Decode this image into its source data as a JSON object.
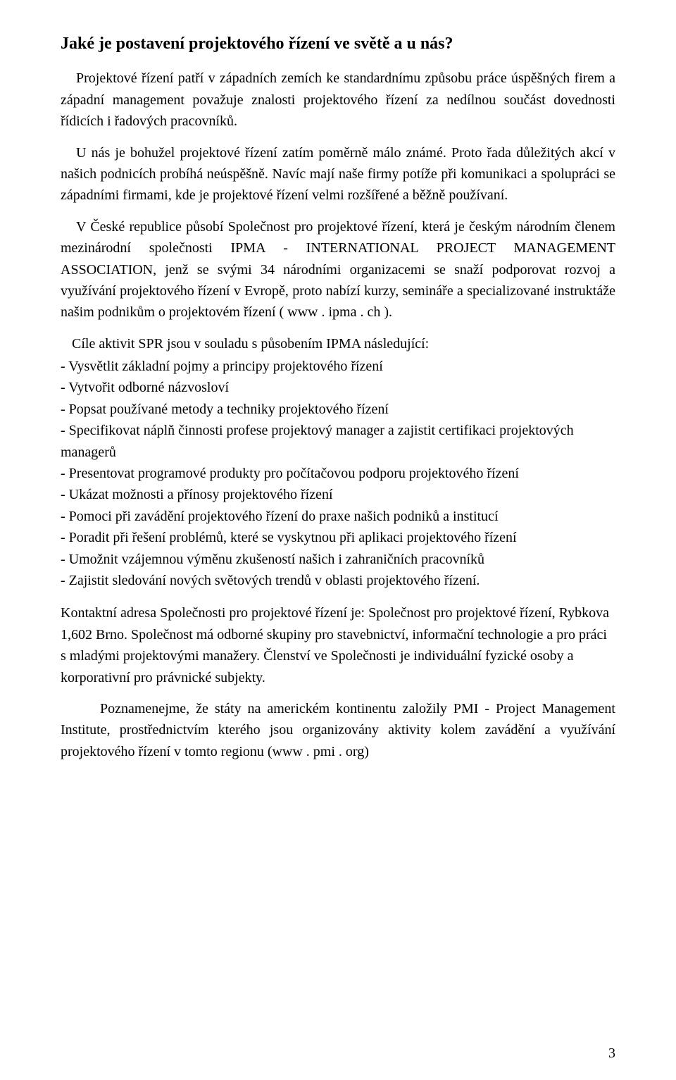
{
  "heading": "Jaké je postavení projektového řízení ve světě a u nás?",
  "para1": "Projektové řízení patří v západních zemích ke standardnímu způsobu práce úspěšných firem a západní management považuje znalosti projektového řízení za nedílnou součást dovednosti řídicích i řadových pracovníků.",
  "para2": "U nás je bohužel projektové řízení zatím poměrně málo známé. Proto řada důležitých akcí v našich podnicích probíhá neúspěšně. Navíc mají naše firmy potíže při komunikaci a spolupráci se západními firmami, kde je projektové řízení velmi rozšířené a běžně používaní.",
  "para3": "V České republice působí Společnost pro projektové řízení, která je českým národním členem mezinárodní společnosti IPMA - INTERNATIONAL PROJECT MANAGEMENT ASSOCIATION, jenž se svými 34 národními organizacemi se snaží podporovat rozvoj a využívání projektového řízení v Evropě, proto nabízí kurzy, semináře a specializované instruktáže našim podnikům o projektovém řízení ( www . ipma . ch ).",
  "goals_intro": "Cíle  aktivit SPR jsou v souladu s působením IPMA následující:",
  "goals": [
    " - Vysvětlit základní pojmy a principy projektového řízení",
    "- Vytvořit odborné názvosloví",
    " - Popsat používané metody a techniky projektového řízení",
    "- Specifikovat náplň činnosti profese projektový manager a zajistit certifikaci projektových managerů",
    " - Presentovat programové produkty pro počítačovou podporu projektového řízení",
    " - Ukázat možnosti a přínosy projektového řízení",
    " - Pomoci při zavádění projektového řízení do praxe našich podniků a institucí",
    " - Poradit při řešení problémů, které se vyskytnou při aplikaci projektového řízení",
    " - Umožnit vzájemnou výměnu zkušeností našich i  zahraničních pracovníků",
    " - Zajistit sledování nových světových trendů v oblasti projektového řízení."
  ],
  "para4": "Kontaktní adresa Společnosti pro projektové řízení je: Společnost pro projektové řízení, Rybkova 1,602  Brno. Společnost má odborné skupiny pro stavebnictví, informační technologie a pro práci s mladými projektovými manažery. Členství ve Společnosti je individuální fyzické osoby a korporativní pro právnické subjekty.",
  "para5": "Poznamenejme, že státy na americkém kontinentu založily PMI - Project Management Institute, prostřednictvím kterého jsou organizovány aktivity kolem zavádění a využívání projektového řízení v tomto regionu (www . pmi . org)",
  "page_number": "3"
}
